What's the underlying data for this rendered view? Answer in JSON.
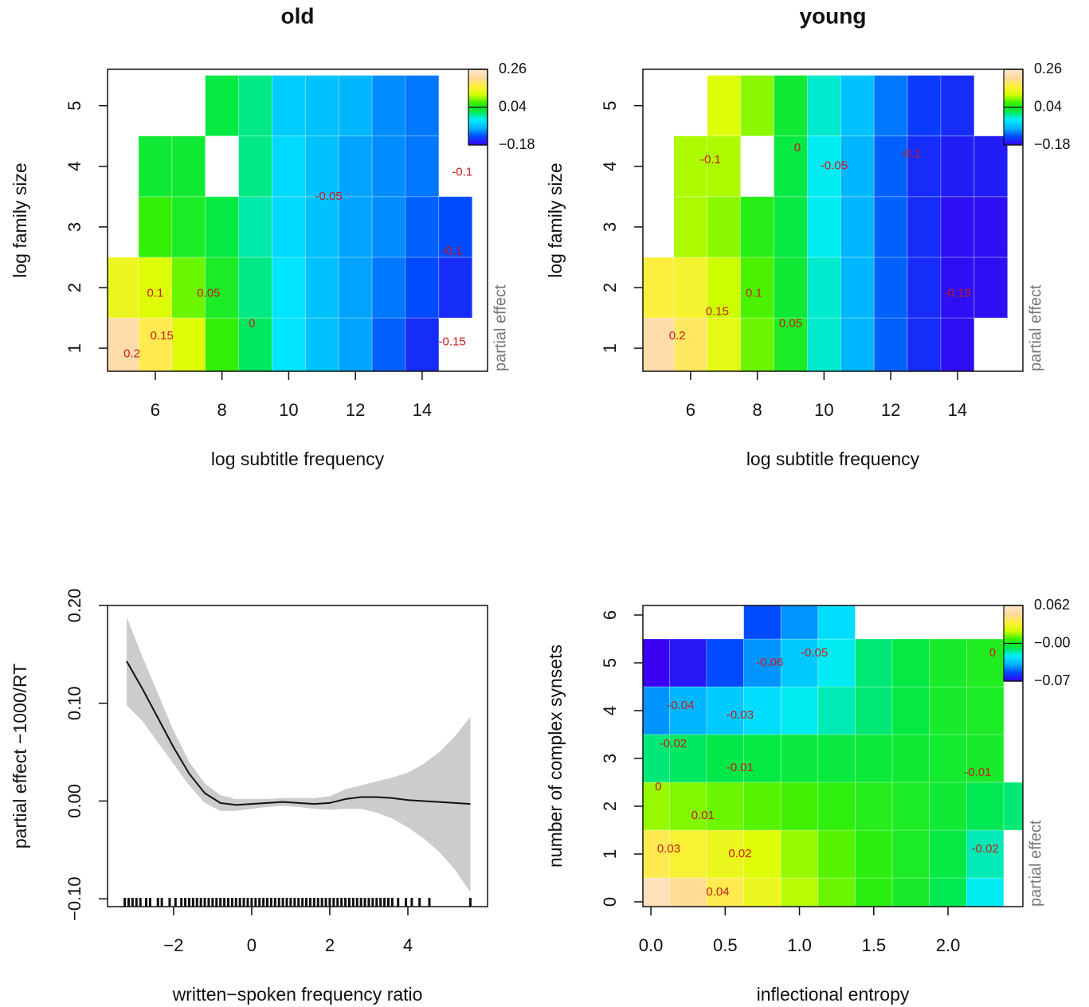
{
  "chart_data": [
    {
      "type": "heatmap",
      "title": "old",
      "xlabel": "log subtitle frequency",
      "ylabel": "log family size",
      "xlim": [
        4.57,
        15.96
      ],
      "ylim": [
        0.62,
        5.6
      ],
      "xticks": [
        6,
        8,
        10,
        12,
        14
      ],
      "yticks": [
        1,
        2,
        3,
        4,
        5
      ],
      "x": [
        5,
        6,
        7,
        8,
        9,
        10,
        11,
        12,
        13,
        14,
        15
      ],
      "y": [
        1,
        2,
        3,
        4,
        5
      ],
      "z": [
        [
          0.22,
          0.17,
          0.12,
          0.06,
          0.01,
          -0.04,
          -0.07,
          -0.09,
          -0.12,
          -0.15,
          null
        ],
        [
          0.14,
          0.12,
          0.08,
          0.04,
          0.0,
          -0.04,
          -0.07,
          -0.09,
          -0.11,
          -0.13,
          -0.15
        ],
        [
          null,
          0.06,
          0.04,
          0.02,
          -0.01,
          -0.05,
          -0.07,
          -0.09,
          -0.1,
          -0.12,
          -0.13
        ],
        [
          null,
          0.03,
          0.03,
          null,
          0.0,
          -0.05,
          -0.07,
          -0.09,
          -0.1,
          -0.11,
          null
        ],
        [
          null,
          null,
          null,
          0.02,
          0.0,
          -0.06,
          -0.07,
          -0.08,
          -0.1,
          -0.11,
          null
        ]
      ],
      "zlim": [
        -0.18,
        0.26
      ],
      "zticks": [
        0.26,
        0.04,
        {
          "value": -0.18,
          "label": "−0.18"
        }
      ],
      "zlabel": "partial effect",
      "colormap": [
        "#3a00f0",
        "#0048ff",
        "#00b4ff",
        "#00ecff",
        "#00e84a",
        "#38f000",
        "#d8ff00",
        "#ffee40",
        "#ffd9a0",
        "#ffe8d0"
      ],
      "contour_labels": [
        {
          "x": 5.3,
          "y": 0.9,
          "level": 0.2
        },
        {
          "x": 6.2,
          "y": 1.2,
          "level": 0.15
        },
        {
          "x": 6.0,
          "y": 1.9,
          "level": 0.1
        },
        {
          "x": 7.6,
          "y": 1.9,
          "level": 0.05
        },
        {
          "x": 8.9,
          "y": 1.4,
          "level": 0
        },
        {
          "x": 11.2,
          "y": 3.5,
          "level": -0.05
        },
        {
          "x": 15.2,
          "y": 3.9,
          "level": -0.1
        },
        {
          "x": 14.9,
          "y": 2.6,
          "level": -0.1
        },
        {
          "x": 14.9,
          "y": 1.1,
          "level": -0.15
        }
      ]
    },
    {
      "type": "heatmap",
      "title": "young",
      "xlabel": "log subtitle frequency",
      "ylabel": "log family size",
      "xlim": [
        4.57,
        15.96
      ],
      "ylim": [
        0.62,
        5.6
      ],
      "xticks": [
        6,
        8,
        10,
        12,
        14
      ],
      "yticks": [
        1,
        2,
        3,
        4,
        5
      ],
      "x": [
        5,
        6,
        7,
        8,
        9,
        10,
        11,
        12,
        13,
        14,
        15
      ],
      "y": [
        1,
        2,
        3,
        4,
        5
      ],
      "z": [
        [
          0.22,
          0.18,
          0.13,
          0.08,
          0.04,
          -0.02,
          -0.08,
          -0.12,
          -0.15,
          -0.17,
          null
        ],
        [
          0.16,
          0.15,
          0.11,
          0.07,
          0.03,
          -0.02,
          -0.08,
          -0.12,
          -0.15,
          -0.17,
          -0.17
        ],
        [
          null,
          0.1,
          0.09,
          0.05,
          0.02,
          -0.03,
          -0.08,
          -0.12,
          -0.15,
          -0.17,
          -0.17
        ],
        [
          null,
          0.1,
          0.1,
          null,
          0.02,
          -0.03,
          -0.08,
          -0.12,
          -0.15,
          -0.16,
          -0.16
        ],
        [
          null,
          null,
          0.12,
          0.09,
          0.03,
          -0.02,
          -0.07,
          -0.11,
          -0.14,
          -0.15,
          null
        ]
      ],
      "zlim": [
        -0.18,
        0.26
      ],
      "zticks": [
        0.26,
        0.04,
        {
          "value": -0.18,
          "label": "−0.18"
        }
      ],
      "zlabel": "partial effect",
      "colormap": [
        "#3a00f0",
        "#0048ff",
        "#00b4ff",
        "#00ecff",
        "#00e84a",
        "#38f000",
        "#d8ff00",
        "#ffee40",
        "#ffd9a0",
        "#ffe8d0"
      ],
      "contour_labels": [
        {
          "x": 5.6,
          "y": 1.2,
          "level": 0.2
        },
        {
          "x": 6.8,
          "y": 1.6,
          "level": 0.15
        },
        {
          "x": 7.9,
          "y": 1.9,
          "level": 0.1
        },
        {
          "x": 9.0,
          "y": 1.4,
          "level": 0.05
        },
        {
          "x": 6.6,
          "y": 4.1,
          "level": -0.1
        },
        {
          "x": 9.2,
          "y": 4.3,
          "level": 0
        },
        {
          "x": 10.3,
          "y": 4.0,
          "level": -0.05
        },
        {
          "x": 12.6,
          "y": 4.2,
          "level": -0.1
        },
        {
          "x": 14.0,
          "y": 1.9,
          "level": -0.15
        }
      ]
    },
    {
      "type": "line",
      "xlabel": "written−spoken frequency ratio",
      "ylabel": "partial effect −1000/RT",
      "xlim": [
        -3.69,
        6.04
      ],
      "ylim": [
        -0.108,
        0.2
      ],
      "xticks": [
        {
          "value": -2,
          "label": "−2"
        },
        0,
        2,
        4
      ],
      "yticks": [
        {
          "value": -0.1,
          "label": "−0.10"
        },
        {
          "value": 0,
          "label": "0.00"
        },
        {
          "value": 0.1,
          "label": "0.10"
        },
        {
          "value": 0.2,
          "label": "0.20"
        }
      ],
      "color": "#111111",
      "band_color": "#cccccc",
      "x": [
        -3.2,
        -2.8,
        -2.4,
        -2,
        -1.6,
        -1.2,
        -0.8,
        -0.4,
        0,
        0.4,
        0.8,
        1.2,
        1.6,
        2,
        2.4,
        2.8,
        3.2,
        3.6,
        4,
        4.4,
        4.8,
        5.2,
        5.6
      ],
      "values": [
        0.143,
        0.115,
        0.085,
        0.055,
        0.028,
        0.008,
        -0.002,
        -0.004,
        -0.003,
        -0.002,
        -0.001,
        -0.002,
        -0.003,
        -0.002,
        0.002,
        0.004,
        0.004,
        0.003,
        0.001,
        0.0,
        -0.001,
        -0.002,
        -0.003
      ],
      "lower": [
        0.098,
        0.082,
        0.06,
        0.038,
        0.016,
        -0.002,
        -0.01,
        -0.01,
        -0.008,
        -0.006,
        -0.005,
        -0.006,
        -0.008,
        -0.009,
        -0.008,
        -0.008,
        -0.012,
        -0.018,
        -0.027,
        -0.038,
        -0.052,
        -0.07,
        -0.093
      ],
      "upper": [
        0.188,
        0.148,
        0.11,
        0.072,
        0.04,
        0.018,
        0.006,
        0.002,
        0.002,
        0.002,
        0.003,
        0.003,
        0.003,
        0.005,
        0.012,
        0.016,
        0.02,
        0.024,
        0.029,
        0.038,
        0.05,
        0.066,
        0.086
      ],
      "rug": [
        -3.25,
        -3.15,
        -3.05,
        -2.95,
        -2.85,
        -2.7,
        -2.6,
        -2.4,
        -2.3,
        -2.1,
        -1.95,
        -1.8,
        -1.7,
        -1.6,
        -1.5,
        -1.4,
        -1.3,
        -1.2,
        -1.1,
        -1.0,
        -0.9,
        -0.8,
        -0.7,
        -0.6,
        -0.5,
        -0.4,
        -0.3,
        -0.2,
        -0.1,
        0.0,
        0.1,
        0.2,
        0.3,
        0.4,
        0.5,
        0.6,
        0.7,
        0.8,
        0.9,
        1.0,
        1.1,
        1.2,
        1.3,
        1.4,
        1.5,
        1.6,
        1.7,
        1.8,
        1.9,
        2.0,
        2.1,
        2.2,
        2.3,
        2.4,
        2.5,
        2.6,
        2.7,
        2.8,
        2.9,
        3.0,
        3.1,
        3.2,
        3.3,
        3.4,
        3.5,
        3.6,
        3.75,
        3.95,
        4.1,
        4.3,
        4.55,
        5.6
      ]
    },
    {
      "type": "heatmap",
      "xlabel": "inflectional entropy",
      "ylabel": "number of complex synsets",
      "xlim": [
        -0.054,
        2.504
      ],
      "ylim": [
        -0.1,
        6.2
      ],
      "xticks": [
        {
          "value": 0,
          "label": "0.0"
        },
        0.5,
        {
          "value": 1,
          "label": "1.0"
        },
        1.5,
        {
          "value": 2,
          "label": "2.0"
        }
      ],
      "yticks": [
        0,
        1,
        2,
        3,
        4,
        5,
        6
      ],
      "x": [
        0,
        0.25,
        0.5,
        0.75,
        1,
        1.25,
        1.5,
        1.75,
        2,
        2.25,
        2.5
      ],
      "y": [
        0,
        1,
        2,
        3,
        4,
        5,
        6
      ],
      "z": [
        [
          0.055,
          0.045,
          0.035,
          0.025,
          0.015,
          0.008,
          0.0,
          -0.005,
          -0.012,
          -0.025,
          null
        ],
        [
          0.035,
          0.03,
          0.025,
          0.02,
          0.012,
          0.006,
          0.0,
          -0.004,
          -0.01,
          -0.02,
          null
        ],
        [
          0.012,
          0.01,
          0.008,
          0.006,
          0.004,
          0.001,
          -0.002,
          -0.004,
          -0.007,
          -0.012,
          -0.015
        ],
        [
          -0.015,
          -0.013,
          -0.011,
          -0.01,
          -0.009,
          -0.009,
          -0.008,
          -0.007,
          -0.006,
          -0.005,
          null
        ],
        [
          -0.045,
          -0.04,
          -0.035,
          -0.03,
          -0.025,
          -0.02,
          -0.015,
          -0.01,
          -0.005,
          -0.004,
          null
        ],
        [
          -0.07,
          -0.065,
          -0.055,
          -0.045,
          -0.035,
          -0.025,
          -0.015,
          -0.01,
          -0.005,
          -0.003,
          null
        ],
        [
          null,
          null,
          null,
          -0.055,
          -0.045,
          -0.03,
          null,
          null,
          null,
          null,
          null
        ]
      ],
      "zlim": [
        -0.07,
        0.062
      ],
      "zticks": [
        0.062,
        {
          "value": -0.004,
          "label": "−0.00"
        },
        {
          "value": -0.07,
          "label": "−0.07"
        }
      ],
      "zlabel": "partial effect",
      "colormap": [
        "#3a00f0",
        "#0048ff",
        "#00b4ff",
        "#00ecff",
        "#00e84a",
        "#38f000",
        "#d8ff00",
        "#ffee40",
        "#ffd9a0",
        "#ffe8d0"
      ],
      "contour_labels": [
        {
          "x": 0.8,
          "y": 5.0,
          "level": -0.06
        },
        {
          "x": 1.1,
          "y": 5.2,
          "level": -0.05
        },
        {
          "x": 0.2,
          "y": 4.1,
          "level": -0.04
        },
        {
          "x": 0.6,
          "y": 3.9,
          "level": -0.03
        },
        {
          "x": 0.15,
          "y": 3.3,
          "level": -0.02
        },
        {
          "x": 0.6,
          "y": 2.8,
          "level": -0.01
        },
        {
          "x": 2.2,
          "y": 2.7,
          "level": -0.01
        },
        {
          "x": 0.05,
          "y": 2.4,
          "level": 0
        },
        {
          "x": 0.35,
          "y": 1.8,
          "level": 0.01
        },
        {
          "x": 0.6,
          "y": 1.0,
          "level": 0.02
        },
        {
          "x": 0.12,
          "y": 1.1,
          "level": 0.03
        },
        {
          "x": 0.45,
          "y": 0.2,
          "level": 0.04
        },
        {
          "x": 2.25,
          "y": 1.1,
          "level": -0.02
        },
        {
          "x": 2.3,
          "y": 5.2,
          "level": 0
        }
      ]
    }
  ]
}
